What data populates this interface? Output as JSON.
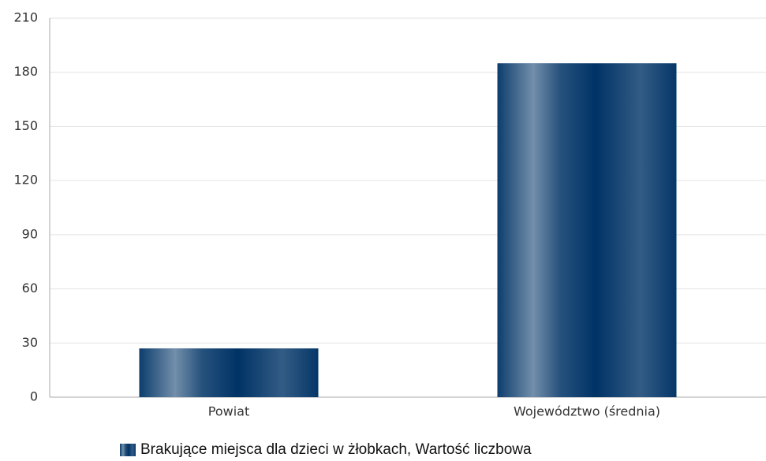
{
  "chart_data": {
    "type": "bar",
    "categories": [
      "Powiat",
      "Województwo (średnia)"
    ],
    "series": [
      {
        "name": "Brakujące miejsca dla dzieci w żłobkach, Wartość liczbowa",
        "color": "#003366",
        "values": [
          27,
          185
        ]
      }
    ],
    "ylim": [
      0,
      210
    ],
    "yticks": [
      0,
      30,
      60,
      90,
      120,
      150,
      180,
      210
    ],
    "grid": true,
    "legend": "bottom"
  }
}
